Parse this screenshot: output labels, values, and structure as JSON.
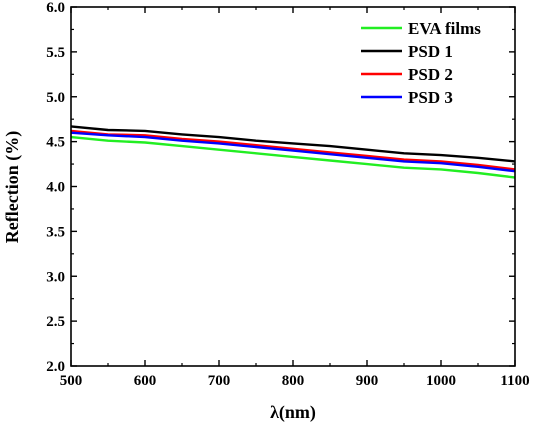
{
  "chart_data": {
    "type": "line",
    "xlabel": "λ(nm)",
    "ylabel": "Reflection (%)",
    "xlim": [
      500,
      1100
    ],
    "ylim": [
      2.0,
      6.0
    ],
    "x_ticks": [
      "500",
      "600",
      "700",
      "800",
      "900",
      "1000",
      "1100"
    ],
    "y_ticks": [
      "2.0",
      "2.5",
      "3.0",
      "3.5",
      "4.0",
      "4.5",
      "5.0",
      "5.5",
      "6.0"
    ],
    "grid": false,
    "legend_position": "top-right",
    "series": [
      {
        "name": "EVA films",
        "color": "#22ee22",
        "x": [
          500,
          550,
          600,
          650,
          700,
          750,
          800,
          850,
          900,
          950,
          1000,
          1050,
          1100
        ],
        "y": [
          4.55,
          4.51,
          4.49,
          4.45,
          4.41,
          4.37,
          4.33,
          4.29,
          4.25,
          4.21,
          4.19,
          4.15,
          4.1
        ]
      },
      {
        "name": "PSD 1",
        "color": "#000000",
        "x": [
          500,
          550,
          600,
          650,
          700,
          750,
          800,
          850,
          900,
          950,
          1000,
          1050,
          1100
        ],
        "y": [
          4.67,
          4.63,
          4.62,
          4.58,
          4.55,
          4.51,
          4.48,
          4.45,
          4.41,
          4.37,
          4.35,
          4.32,
          4.28
        ]
      },
      {
        "name": "PSD 2",
        "color": "#ff0000",
        "x": [
          500,
          550,
          600,
          650,
          700,
          750,
          800,
          850,
          900,
          950,
          1000,
          1050,
          1100
        ],
        "y": [
          4.62,
          4.58,
          4.57,
          4.53,
          4.5,
          4.46,
          4.42,
          4.38,
          4.34,
          4.3,
          4.28,
          4.24,
          4.19
        ]
      },
      {
        "name": "PSD 3",
        "color": "#0000ff",
        "x": [
          500,
          550,
          600,
          650,
          700,
          750,
          800,
          850,
          900,
          950,
          1000,
          1050,
          1100
        ],
        "y": [
          4.6,
          4.57,
          4.55,
          4.51,
          4.48,
          4.44,
          4.4,
          4.36,
          4.32,
          4.28,
          4.26,
          4.22,
          4.17
        ]
      }
    ]
  }
}
